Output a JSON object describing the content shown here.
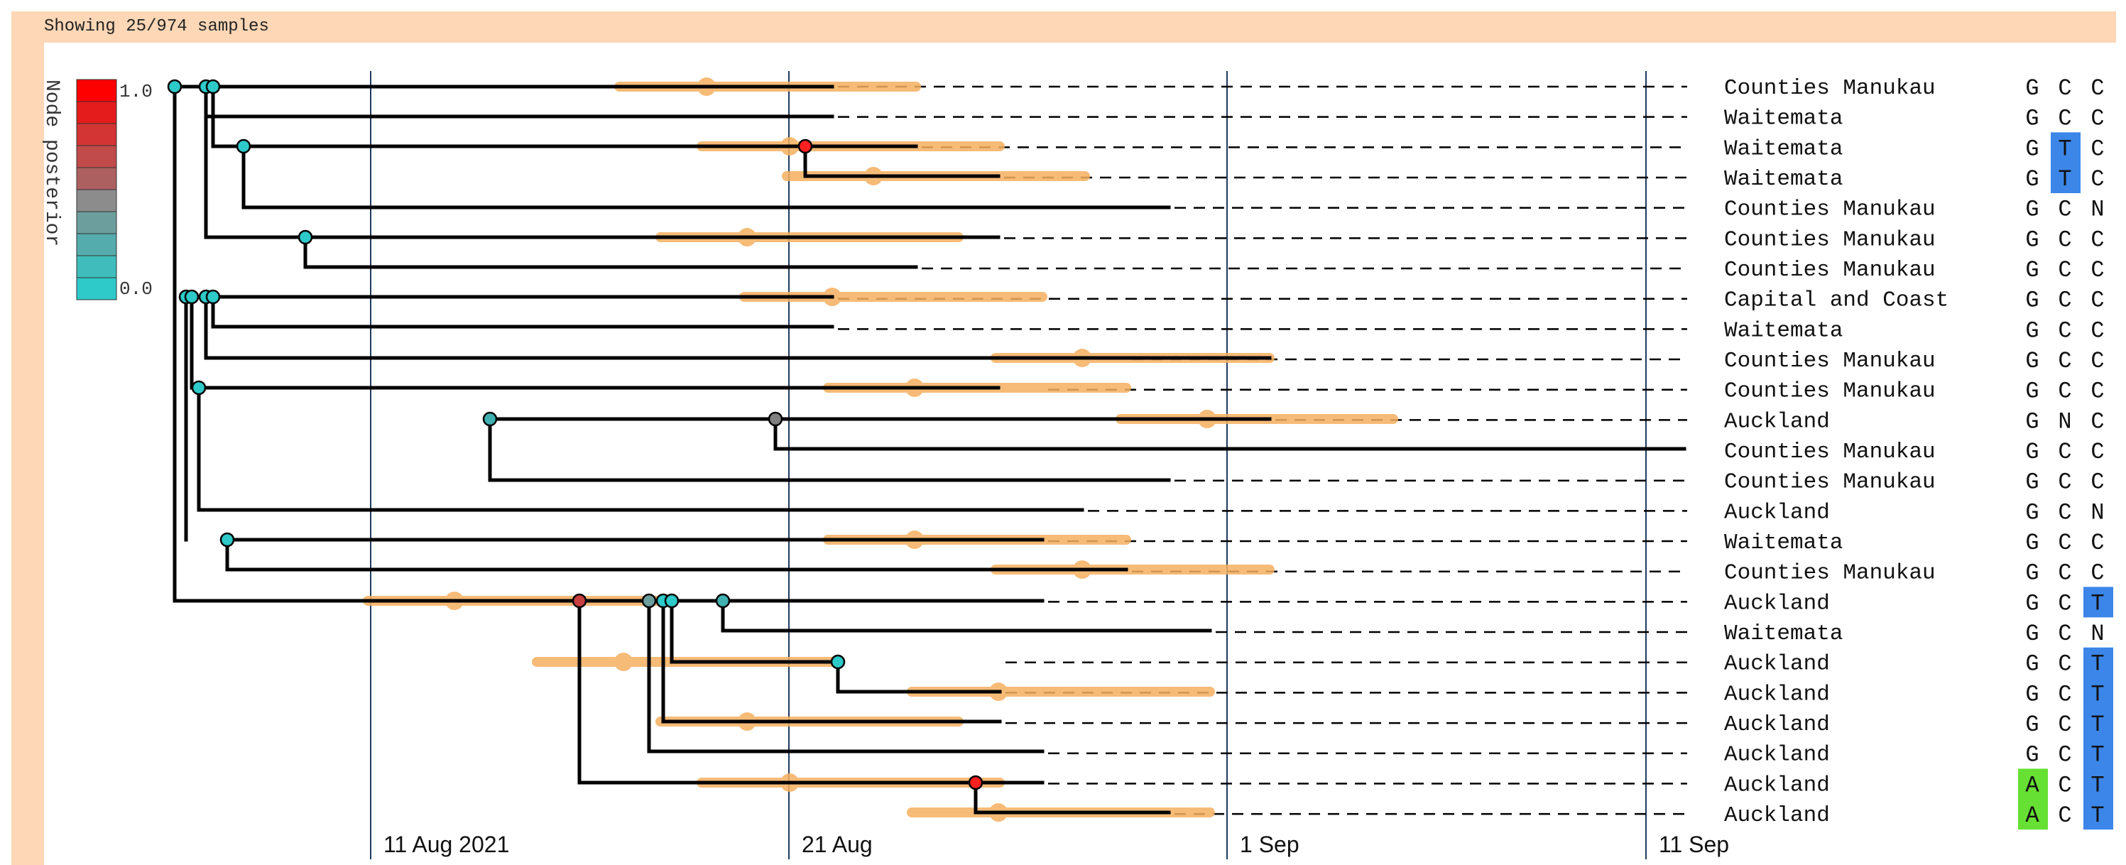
{
  "header": {
    "status_text": "Showing 25/974 samples"
  },
  "legend": {
    "title": "Node posterior",
    "max_label": "1.0",
    "min_label": "0.0",
    "swatch_colors": [
      "#ff0000",
      "#e41c1c",
      "#d33434",
      "#c14a4a",
      "#ad6060",
      "#8c8c8c",
      "#6d9e9e",
      "#55acac",
      "#40bcbc",
      "#2ec9c9"
    ]
  },
  "colors": {
    "frame": "#fdd7b6",
    "branch": "#000000",
    "hpd": "#f5b060",
    "gridline": "#1e3a5f",
    "node_low": "#2ec9c9",
    "node_mid": "#808080",
    "node_high": "#ff2020",
    "base_T": "#3b86e8",
    "base_A": "#66e033"
  },
  "time_axis": {
    "ticks": [
      {
        "label": "11 Aug 2021",
        "day": 0
      },
      {
        "label": "21 Aug",
        "day": 10
      },
      {
        "label": "1 Sep",
        "day": 21
      },
      {
        "label": "11 Sep",
        "day": 31
      }
    ]
  },
  "samples": [
    {
      "location": "Counties Manukau",
      "bases": [
        "G",
        "C",
        "C"
      ]
    },
    {
      "location": "Waitemata",
      "bases": [
        "G",
        "C",
        "C"
      ]
    },
    {
      "location": "Waitemata",
      "bases": [
        "G",
        "T",
        "C"
      ]
    },
    {
      "location": "Waitemata",
      "bases": [
        "G",
        "T",
        "C"
      ]
    },
    {
      "location": "Counties Manukau",
      "bases": [
        "G",
        "C",
        "N"
      ]
    },
    {
      "location": "Counties Manukau",
      "bases": [
        "G",
        "C",
        "C"
      ]
    },
    {
      "location": "Counties Manukau",
      "bases": [
        "G",
        "C",
        "C"
      ]
    },
    {
      "location": "Capital and Coast",
      "bases": [
        "G",
        "C",
        "C"
      ]
    },
    {
      "location": "Waitemata",
      "bases": [
        "G",
        "C",
        "C"
      ]
    },
    {
      "location": "Counties Manukau",
      "bases": [
        "G",
        "C",
        "C"
      ]
    },
    {
      "location": "Counties Manukau",
      "bases": [
        "G",
        "C",
        "C"
      ]
    },
    {
      "location": "Auckland",
      "bases": [
        "G",
        "N",
        "C"
      ]
    },
    {
      "location": "Counties Manukau",
      "bases": [
        "G",
        "C",
        "C"
      ]
    },
    {
      "location": "Counties Manukau",
      "bases": [
        "G",
        "C",
        "C"
      ]
    },
    {
      "location": "Auckland",
      "bases": [
        "G",
        "C",
        "N"
      ]
    },
    {
      "location": "Waitemata",
      "bases": [
        "G",
        "C",
        "C"
      ]
    },
    {
      "location": "Counties Manukau",
      "bases": [
        "G",
        "C",
        "C"
      ]
    },
    {
      "location": "Auckland",
      "bases": [
        "G",
        "C",
        "T"
      ]
    },
    {
      "location": "Waitemata",
      "bases": [
        "G",
        "C",
        "N"
      ]
    },
    {
      "location": "Auckland",
      "bases": [
        "G",
        "C",
        "T"
      ]
    },
    {
      "location": "Auckland",
      "bases": [
        "G",
        "C",
        "T"
      ]
    },
    {
      "location": "Auckland",
      "bases": [
        "G",
        "C",
        "T"
      ]
    },
    {
      "location": "Auckland",
      "bases": [
        "G",
        "C",
        "T"
      ]
    },
    {
      "location": "Auckland",
      "bases": [
        "A",
        "C",
        "T"
      ]
    },
    {
      "location": "Auckland",
      "bases": [
        "A",
        "C",
        "T"
      ]
    }
  ]
}
